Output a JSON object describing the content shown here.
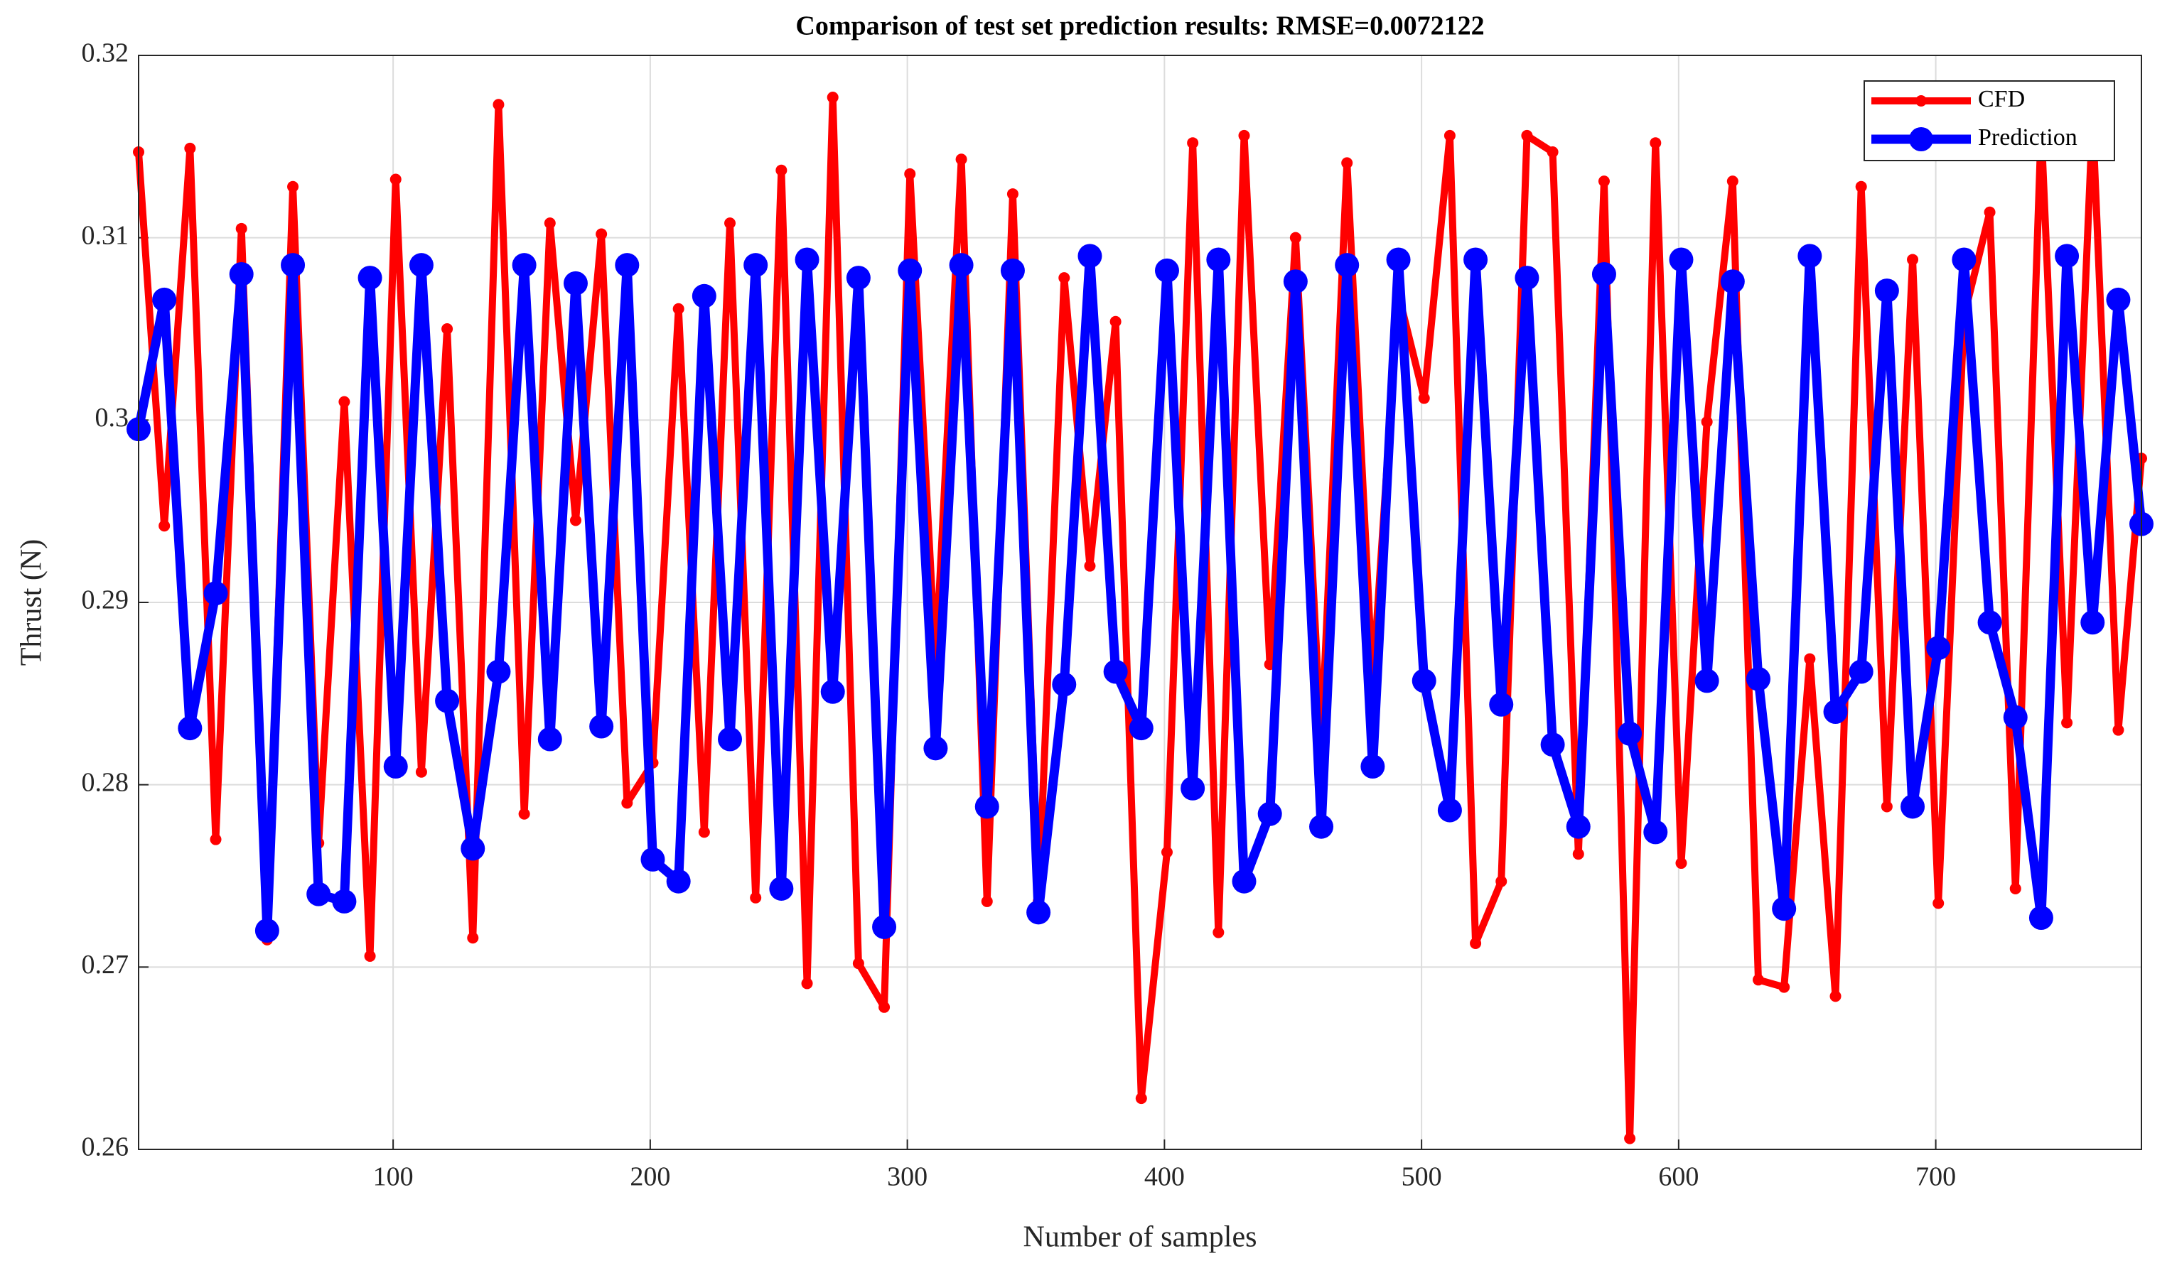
{
  "chart_data": {
    "type": "line",
    "title": "Comparison of test set prediction results: RMSE=0.0072122",
    "xlabel": "Number of samples",
    "ylabel": "Thrust (N)",
    "x": [
      1,
      11,
      21,
      31,
      41,
      51,
      61,
      71,
      81,
      91,
      101,
      111,
      121,
      131,
      141,
      151,
      161,
      171,
      181,
      191,
      201,
      211,
      221,
      231,
      241,
      251,
      261,
      271,
      281,
      291,
      301,
      311,
      321,
      331,
      341,
      351,
      361,
      371,
      381,
      391,
      401,
      411,
      421,
      431,
      441,
      451,
      461,
      471,
      481,
      491,
      501,
      511,
      521,
      531,
      541,
      551,
      561,
      571,
      581,
      591,
      601,
      611,
      621,
      631,
      641,
      651,
      661,
      671,
      681,
      691,
      701,
      711,
      721,
      731,
      741,
      751,
      761,
      771,
      780
    ],
    "series": [
      {
        "name": "CFD",
        "color": "#ff0000",
        "values": [
          0.3147,
          0.2942,
          0.3149,
          0.277,
          0.3105,
          0.2715,
          0.3128,
          0.2768,
          0.301,
          0.2706,
          0.3132,
          0.2807,
          0.305,
          0.2716,
          0.3173,
          0.2784,
          0.3108,
          0.2945,
          0.3102,
          0.279,
          0.2812,
          0.3061,
          0.2774,
          0.3108,
          0.2738,
          0.3137,
          0.2691,
          0.3177,
          0.2702,
          0.2678,
          0.3135,
          0.2867,
          0.3143,
          0.2736,
          0.3124,
          0.2736,
          0.3078,
          0.292,
          0.3054,
          0.2628,
          0.2763,
          0.3152,
          0.2719,
          0.3156,
          0.2866,
          0.31,
          0.2822,
          0.3141,
          0.2856,
          0.3069,
          0.3012,
          0.3156,
          0.2713,
          0.2747,
          0.3156,
          0.3147,
          0.2762,
          0.3131,
          0.2606,
          0.3152,
          0.2757,
          0.2999,
          0.3131,
          0.2693,
          0.2689,
          0.2869,
          0.2684,
          0.3128,
          0.2788,
          0.3088,
          0.2735,
          0.3057,
          0.3114,
          0.2743,
          0.3161,
          0.2834,
          0.3166,
          0.283,
          0.2979
        ]
      },
      {
        "name": "Prediction",
        "color": "#0000ff",
        "values": [
          0.2995,
          0.3066,
          0.2831,
          0.2905,
          0.308,
          0.272,
          0.3085,
          0.274,
          0.2736,
          0.3078,
          0.281,
          0.3085,
          0.2846,
          0.2765,
          0.2862,
          0.3085,
          0.2825,
          0.3075,
          0.2832,
          0.3085,
          0.2759,
          0.2747,
          0.3068,
          0.2825,
          0.3085,
          0.2743,
          0.3088,
          0.2851,
          0.3078,
          0.2722,
          0.3082,
          0.282,
          0.3085,
          0.2788,
          0.3082,
          0.273,
          0.2855,
          0.309,
          0.2862,
          0.2831,
          0.3082,
          0.2798,
          0.3088,
          0.2747,
          0.2784,
          0.3076,
          0.2777,
          0.3085,
          0.281,
          0.3088,
          0.2857,
          0.2786,
          0.3088,
          0.2844,
          0.3078,
          0.2822,
          0.2777,
          0.308,
          0.2828,
          0.2774,
          0.3088,
          0.2857,
          0.3076,
          0.2858,
          0.2732,
          0.309,
          0.284,
          0.2862,
          0.3071,
          0.2788,
          0.2875,
          0.3088,
          0.2889,
          0.2837,
          0.2727,
          0.309,
          0.2889,
          0.3066,
          0.2943
        ]
      }
    ],
    "xlim": [
      1,
      780
    ],
    "ylim": [
      0.26,
      0.32
    ],
    "xticks": [
      100,
      200,
      300,
      400,
      500,
      600,
      700
    ],
    "yticks": [
      0.26,
      0.27,
      0.28,
      0.29,
      0.3,
      0.31,
      0.32
    ],
    "grid": true,
    "legend": "top-right"
  }
}
